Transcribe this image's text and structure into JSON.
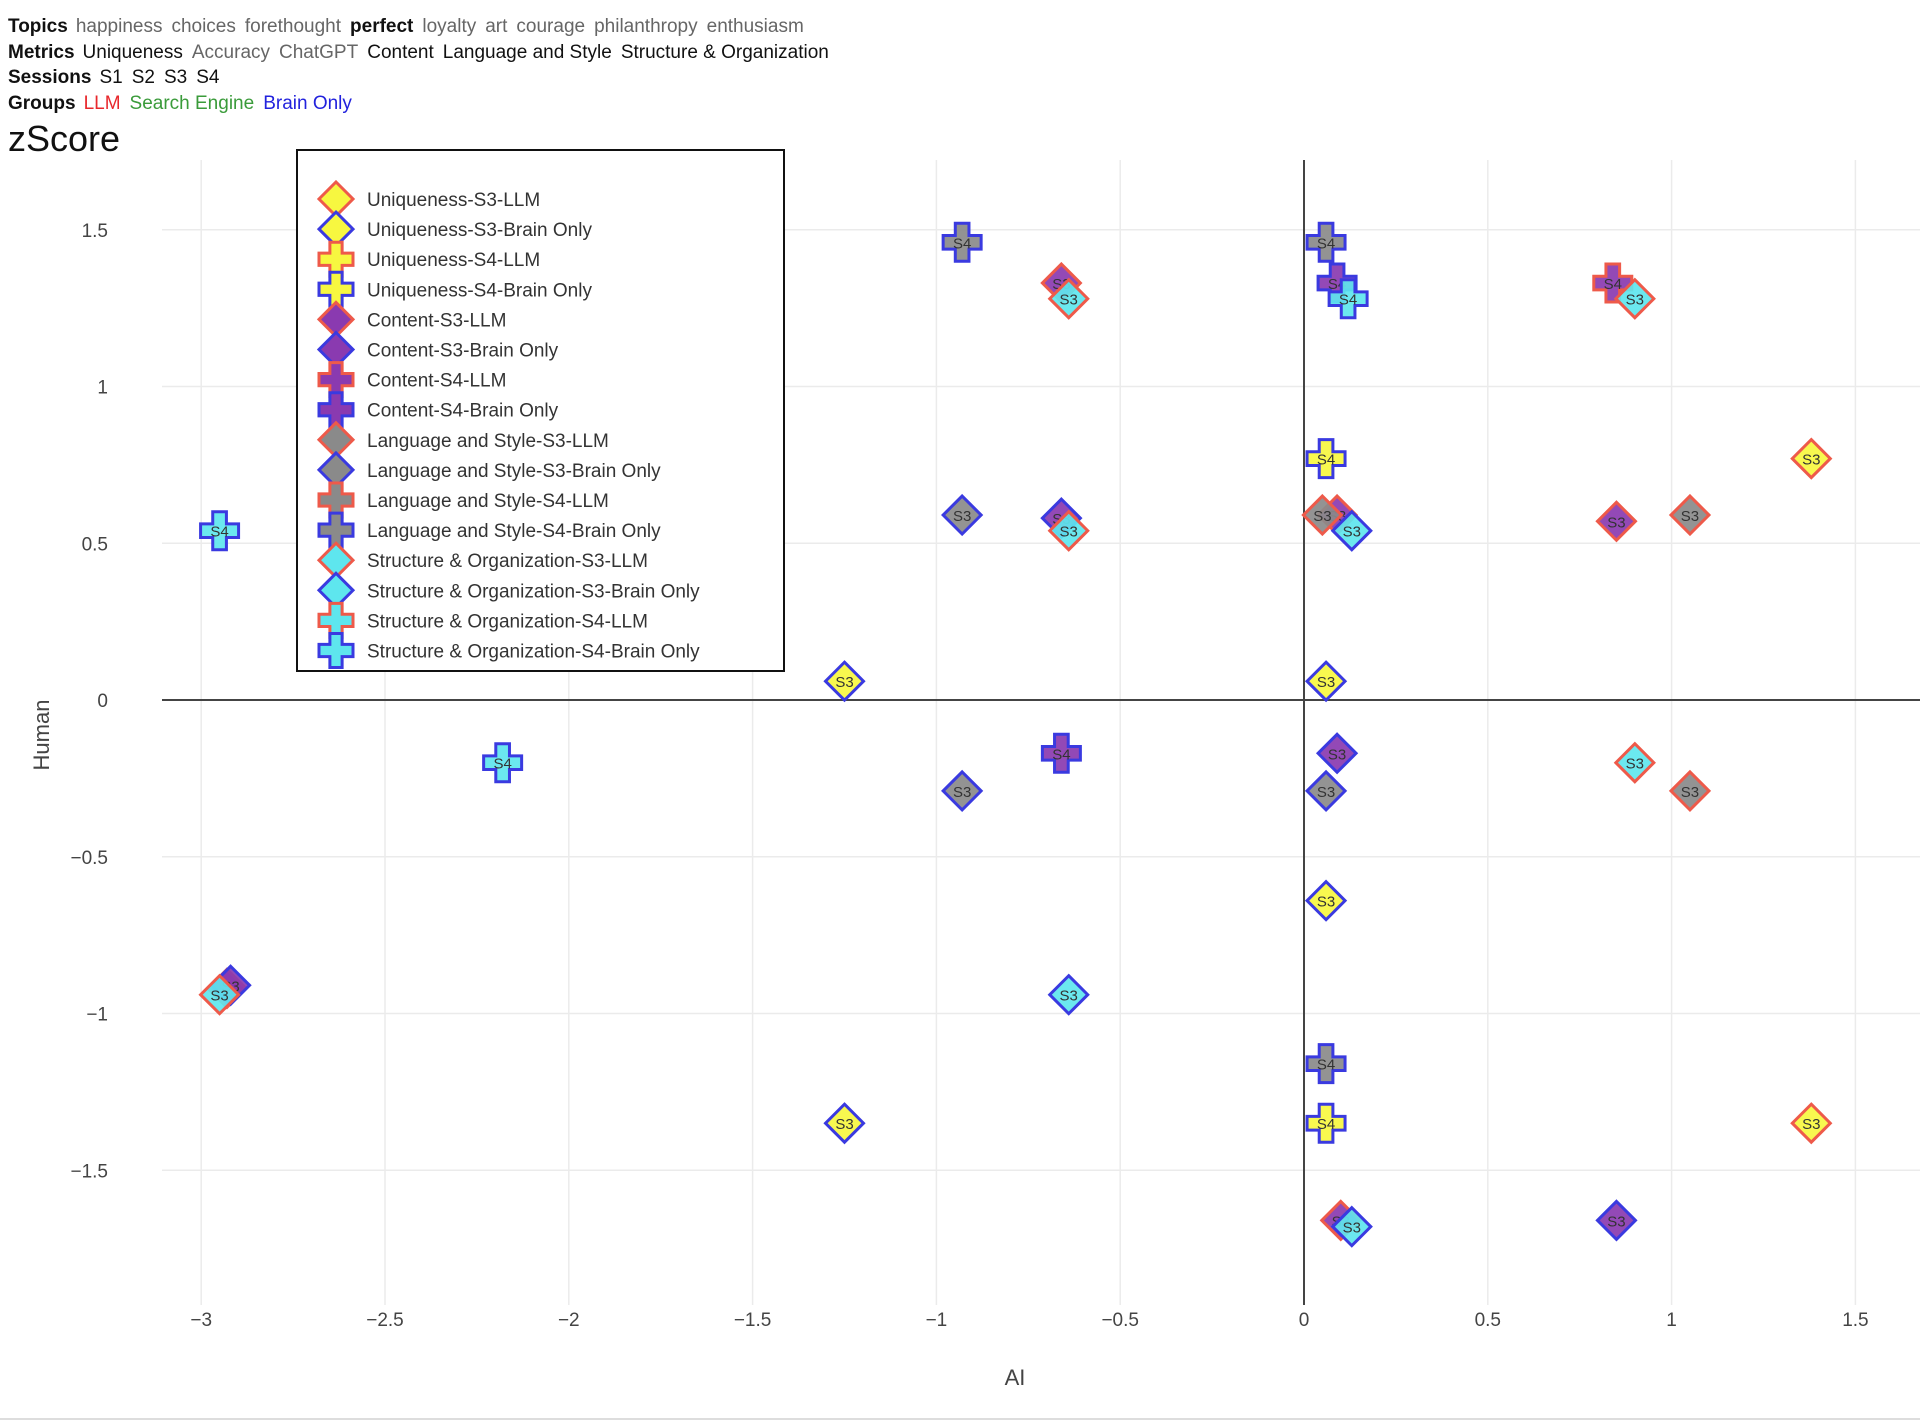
{
  "filters": {
    "topics": {
      "label": "Topics",
      "options": [
        "happiness",
        "choices",
        "forethought",
        "perfect",
        "loyalty",
        "art",
        "courage",
        "philanthropy",
        "enthusiasm"
      ],
      "selected": "perfect"
    },
    "metrics": {
      "label": "Metrics",
      "options": [
        "Uniqueness",
        "Accuracy",
        "ChatGPT",
        "Content",
        "Language and Style",
        "Structure & Organization"
      ],
      "selected": [
        "Uniqueness",
        "Content",
        "Language and Style",
        "Structure & Organization"
      ]
    },
    "sessions": {
      "label": "Sessions",
      "options": [
        "S1",
        "S2",
        "S3",
        "S4"
      ]
    },
    "groups": {
      "label": "Groups",
      "options": [
        {
          "name": "LLM",
          "color": "#e8282c"
        },
        {
          "name": "Search Engine",
          "color": "#3a9b3a"
        },
        {
          "name": "Brain Only",
          "color": "#2222dd"
        }
      ]
    }
  },
  "page_title": "zScore",
  "chart_data": {
    "type": "scatter",
    "xlabel": "AI",
    "ylabel": "Human",
    "xlim": [
      -3.33,
      1.68
    ],
    "ylim": [
      -1.93,
      1.69
    ],
    "xticks": [
      {
        "v": -3,
        "t": "−3"
      },
      {
        "v": -2.5,
        "t": "−2.5"
      },
      {
        "v": -2,
        "t": "−2"
      },
      {
        "v": -1.5,
        "t": "−1.5"
      },
      {
        "v": -1,
        "t": "−1"
      },
      {
        "v": -0.5,
        "t": "−0.5"
      },
      {
        "v": 0,
        "t": "0"
      },
      {
        "v": 0.5,
        "t": "0.5"
      },
      {
        "v": 1,
        "t": "1"
      },
      {
        "v": 1.5,
        "t": "1.5"
      }
    ],
    "yticks": [
      {
        "v": 1.5,
        "t": "1.5"
      },
      {
        "v": 1,
        "t": "1"
      },
      {
        "v": 0.5,
        "t": "0.5"
      },
      {
        "v": 0,
        "t": "0"
      },
      {
        "v": -0.5,
        "t": "−0.5"
      },
      {
        "v": -1,
        "t": "−1"
      },
      {
        "v": -1.5,
        "t": "−1.5"
      }
    ],
    "metric_colors": {
      "Uniqueness": "#f7f740",
      "Content": "#8a3ab0",
      "Language and Style": "#8a8a8a",
      "Structure & Organization": "#5ee6ee"
    },
    "group_colors": {
      "LLM": "#ee5a4a",
      "Brain Only": "#3a3ae0"
    },
    "series": [
      {
        "name": "Uniqueness-S3-LLM",
        "metric": "Uniqueness",
        "session": "S3",
        "group": "LLM",
        "symbol": "diamond",
        "points": [
          {
            "x": 1.38,
            "y": 0.77,
            "label": "S3"
          },
          {
            "x": 1.38,
            "y": -1.35,
            "label": "S3"
          }
        ]
      },
      {
        "name": "Uniqueness-S3-Brain Only",
        "metric": "Uniqueness",
        "session": "S3",
        "group": "Brain Only",
        "symbol": "diamond",
        "points": [
          {
            "x": -1.25,
            "y": 0.06,
            "label": "S3"
          },
          {
            "x": -1.25,
            "y": -1.35,
            "label": "S3"
          },
          {
            "x": 0.06,
            "y": 0.06,
            "label": "S3"
          },
          {
            "x": 0.06,
            "y": -0.64,
            "label": "S3"
          }
        ]
      },
      {
        "name": "Uniqueness-S4-LLM",
        "metric": "Uniqueness",
        "session": "S4",
        "group": "LLM",
        "symbol": "cross",
        "points": []
      },
      {
        "name": "Uniqueness-S4-Brain Only",
        "metric": "Uniqueness",
        "session": "S4",
        "group": "Brain Only",
        "symbol": "cross",
        "points": [
          {
            "x": 0.06,
            "y": 0.77,
            "label": "S4"
          },
          {
            "x": 0.06,
            "y": -1.35,
            "label": "S4"
          }
        ]
      },
      {
        "name": "Content-S3-LLM",
        "metric": "Content",
        "session": "S3",
        "group": "LLM",
        "symbol": "diamond",
        "points": [
          {
            "x": -0.66,
            "y": 1.33,
            "label": "S3"
          },
          {
            "x": -2.93,
            "y": -0.92,
            "label": "S3"
          },
          {
            "x": 0.85,
            "y": 0.57,
            "label": "S3"
          },
          {
            "x": 0.1,
            "y": -1.66,
            "label": "S3"
          },
          {
            "x": 0.09,
            "y": 0.59,
            "label": "S3"
          }
        ]
      },
      {
        "name": "Content-S3-Brain Only",
        "metric": "Content",
        "session": "S3",
        "group": "Brain Only",
        "symbol": "diamond",
        "points": [
          {
            "x": -2.92,
            "y": -0.91,
            "label": "S3"
          },
          {
            "x": -0.66,
            "y": 0.58,
            "label": "S3"
          },
          {
            "x": 0.09,
            "y": -0.17,
            "label": "S3"
          },
          {
            "x": 0.85,
            "y": -1.66,
            "label": "S3"
          }
        ]
      },
      {
        "name": "Content-S4-LLM",
        "metric": "Content",
        "session": "S4",
        "group": "LLM",
        "symbol": "cross",
        "points": [
          {
            "x": 0.84,
            "y": 1.33,
            "label": "S4"
          }
        ]
      },
      {
        "name": "Content-S4-Brain Only",
        "metric": "Content",
        "session": "S4",
        "group": "Brain Only",
        "symbol": "cross",
        "points": [
          {
            "x": -0.66,
            "y": -0.17,
            "label": "S4"
          },
          {
            "x": 0.09,
            "y": 1.33,
            "label": "S4"
          }
        ]
      },
      {
        "name": "Language and Style-S3-LLM",
        "metric": "Language and Style",
        "session": "S3",
        "group": "LLM",
        "symbol": "diamond",
        "points": [
          {
            "x": 1.05,
            "y": 0.59,
            "label": "S3"
          },
          {
            "x": 1.05,
            "y": -0.29,
            "label": "S3"
          },
          {
            "x": 0.05,
            "y": 0.59,
            "label": "S3"
          }
        ]
      },
      {
        "name": "Language and Style-S3-Brain Only",
        "metric": "Language and Style",
        "session": "S3",
        "group": "Brain Only",
        "symbol": "diamond",
        "points": [
          {
            "x": -0.93,
            "y": 0.59,
            "label": "S3"
          },
          {
            "x": -0.93,
            "y": -0.29,
            "label": "S3"
          },
          {
            "x": 0.06,
            "y": -0.29,
            "label": "S3"
          }
        ]
      },
      {
        "name": "Language and Style-S4-LLM",
        "metric": "Language and Style",
        "session": "S4",
        "group": "LLM",
        "symbol": "cross",
        "points": []
      },
      {
        "name": "Language and Style-S4-Brain Only",
        "metric": "Language and Style",
        "session": "S4",
        "group": "Brain Only",
        "symbol": "cross",
        "points": [
          {
            "x": -0.93,
            "y": 1.46,
            "label": "S4"
          },
          {
            "x": 0.06,
            "y": 1.46,
            "label": "S4"
          },
          {
            "x": 0.06,
            "y": -1.16,
            "label": "S4"
          }
        ]
      },
      {
        "name": "Structure & Organization-S3-LLM",
        "metric": "Structure & Organization",
        "session": "S3",
        "group": "LLM",
        "symbol": "diamond",
        "points": [
          {
            "x": -0.64,
            "y": 1.28,
            "label": "S3"
          },
          {
            "x": -0.64,
            "y": 0.54,
            "label": "S3"
          },
          {
            "x": -2.95,
            "y": -0.94,
            "label": "S3"
          },
          {
            "x": 0.9,
            "y": 1.28,
            "label": "S3"
          },
          {
            "x": 0.9,
            "y": -0.2,
            "label": "S3"
          }
        ]
      },
      {
        "name": "Structure & Organization-S3-Brain Only",
        "metric": "Structure & Organization",
        "session": "S3",
        "group": "Brain Only",
        "symbol": "diamond",
        "points": [
          {
            "x": -0.64,
            "y": -0.94,
            "label": "S3"
          },
          {
            "x": 0.13,
            "y": 0.54,
            "label": "S3"
          },
          {
            "x": 0.13,
            "y": -1.68,
            "label": "S3"
          }
        ]
      },
      {
        "name": "Structure & Organization-S4-LLM",
        "metric": "Structure & Organization",
        "session": "S4",
        "group": "LLM",
        "symbol": "cross",
        "points": []
      },
      {
        "name": "Structure & Organization-S4-Brain Only",
        "metric": "Structure & Organization",
        "session": "S4",
        "group": "Brain Only",
        "symbol": "cross",
        "points": [
          {
            "x": -2.95,
            "y": 0.54,
            "label": "S4"
          },
          {
            "x": -2.18,
            "y": -0.2,
            "label": "S4"
          },
          {
            "x": 0.12,
            "y": 1.28,
            "label": "S4"
          }
        ]
      }
    ]
  }
}
